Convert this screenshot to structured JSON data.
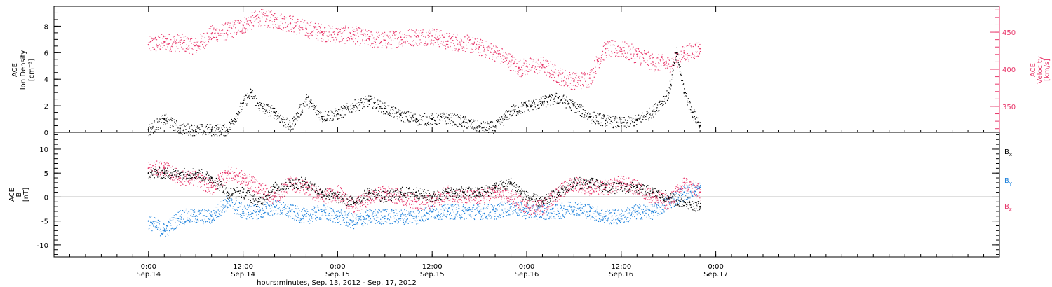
{
  "colors": {
    "density": "#000000",
    "velocity": "#e8366a",
    "bx": "#000000",
    "by": "#1e82dc",
    "bz": "#e8366a"
  },
  "xaxis": {
    "range_hours": [
      -12,
      108
    ],
    "ticks": [
      {
        "h": 0,
        "time": "0:00",
        "day": "Sep.14"
      },
      {
        "h": 12,
        "time": "12:00",
        "day": "Sep.14"
      },
      {
        "h": 24,
        "time": "0:00",
        "day": "Sep.15"
      },
      {
        "h": 36,
        "time": "12:00",
        "day": "Sep.15"
      },
      {
        "h": 48,
        "time": "0:00",
        "day": "Sep.16"
      },
      {
        "h": 60,
        "time": "12:00",
        "day": "Sep.16"
      },
      {
        "h": 72,
        "time": "0:00",
        "day": "Sep.17"
      }
    ],
    "caption": "hours:minutes, Sep. 13, 2012 - Sep. 17, 2012"
  },
  "chart_data": [
    {
      "type": "scatter",
      "panel": "top",
      "ylabel_left": [
        "ACE",
        "Ion Density",
        "[cm⁻³]"
      ],
      "ylabel_right": [
        "ACE",
        "Velocity",
        "[km/s]"
      ],
      "ylim_left": [
        0,
        9.5
      ],
      "yticks_left": [
        "0",
        "2",
        "4",
        "6",
        "8"
      ],
      "ylim_right": [
        315,
        485
      ],
      "yticks_right": [
        "350",
        "400",
        "450"
      ],
      "series": [
        {
          "key": "density",
          "axis": "left",
          "x_hours": [
            0,
            2,
            4,
            6,
            8,
            10,
            12,
            13,
            14,
            16,
            18,
            20,
            22,
            24,
            26,
            28,
            30,
            32,
            34,
            36,
            38,
            40,
            42,
            44,
            46,
            48,
            50,
            52,
            54,
            56,
            58,
            60,
            62,
            64,
            66,
            67,
            68,
            69,
            70
          ],
          "values": [
            0.2,
            1.0,
            0.3,
            0.2,
            0.2,
            0.2,
            2.2,
            3.0,
            2.0,
            1.5,
            0.4,
            2.5,
            1.2,
            1.4,
            2.0,
            2.4,
            1.8,
            1.3,
            1.0,
            1.0,
            1.1,
            0.8,
            0.4,
            0.4,
            1.6,
            2.0,
            2.3,
            2.6,
            2.0,
            1.2,
            0.9,
            0.7,
            0.9,
            1.6,
            3.0,
            6.0,
            3.0,
            1.5,
            0.5
          ]
        },
        {
          "key": "velocity",
          "axis": "right",
          "x_hours": [
            0,
            2,
            4,
            6,
            8,
            10,
            12,
            14,
            16,
            18,
            20,
            22,
            24,
            26,
            28,
            30,
            32,
            34,
            36,
            38,
            40,
            42,
            44,
            46,
            47,
            48,
            50,
            52,
            54,
            56,
            57,
            58,
            60,
            62,
            64,
            66,
            68,
            70
          ],
          "values": [
            433,
            437,
            436,
            432,
            448,
            452,
            460,
            470,
            467,
            462,
            455,
            450,
            447,
            447,
            441,
            439,
            443,
            444,
            445,
            438,
            436,
            430,
            423,
            410,
            402,
            404,
            406,
            392,
            384,
            388,
            412,
            428,
            427,
            420,
            410,
            407,
            422,
            428
          ]
        }
      ]
    },
    {
      "type": "scatter",
      "panel": "bottom",
      "ylabel_left": [
        "ACE",
        "B",
        "[nT]"
      ],
      "ylim": [
        -12.5,
        13.5
      ],
      "yticks": [
        "-10",
        "-5",
        "0",
        "5",
        "10"
      ],
      "legend": [
        "Bx",
        "By",
        "Bz"
      ],
      "series": [
        {
          "key": "bx",
          "name": "Bx",
          "x_hours": [
            0,
            2,
            4,
            6,
            8,
            10,
            12,
            14,
            16,
            18,
            20,
            22,
            24,
            26,
            28,
            30,
            32,
            34,
            36,
            38,
            40,
            42,
            44,
            46,
            48,
            50,
            52,
            54,
            56,
            58,
            60,
            62,
            64,
            66,
            68,
            70
          ],
          "values": [
            5,
            5,
            5,
            5,
            4,
            1,
            1,
            -1,
            2,
            3,
            3,
            1,
            0,
            -1,
            1,
            0,
            1,
            1,
            0,
            1,
            1,
            1,
            2,
            3,
            0,
            -1,
            1,
            3,
            3,
            2,
            2,
            2,
            1,
            0,
            -1,
            -2
          ]
        },
        {
          "key": "by",
          "name": "By",
          "x_hours": [
            0,
            2,
            4,
            6,
            8,
            10,
            12,
            14,
            16,
            18,
            20,
            22,
            24,
            26,
            28,
            30,
            32,
            34,
            36,
            38,
            40,
            42,
            44,
            46,
            48,
            50,
            52,
            54,
            56,
            58,
            60,
            62,
            64,
            66,
            68,
            70
          ],
          "values": [
            -5,
            -7,
            -4,
            -4,
            -4,
            -1,
            -3,
            -3,
            -2,
            -3,
            -4,
            -3,
            -4,
            -5,
            -4,
            -4,
            -4,
            -4,
            -3,
            -3,
            -3,
            -3,
            -3,
            -2,
            -3,
            -3,
            -3,
            -2,
            -3,
            -4,
            -4,
            -3,
            -3,
            -1,
            1,
            2
          ]
        },
        {
          "key": "bz",
          "name": "Bz",
          "x_hours": [
            0,
            2,
            4,
            6,
            8,
            10,
            12,
            14,
            16,
            18,
            20,
            22,
            24,
            26,
            28,
            30,
            32,
            34,
            36,
            38,
            40,
            42,
            44,
            46,
            48,
            50,
            52,
            54,
            56,
            58,
            60,
            62,
            64,
            66,
            68,
            70
          ],
          "values": [
            6,
            6,
            4,
            4,
            2,
            5,
            4,
            2,
            0,
            3,
            2,
            0,
            1,
            -2,
            0,
            1,
            0,
            -1,
            -1,
            1,
            0,
            0,
            1,
            0,
            -2,
            -2,
            1,
            3,
            2,
            2,
            3,
            2,
            0,
            -1,
            3,
            1
          ]
        }
      ]
    }
  ]
}
